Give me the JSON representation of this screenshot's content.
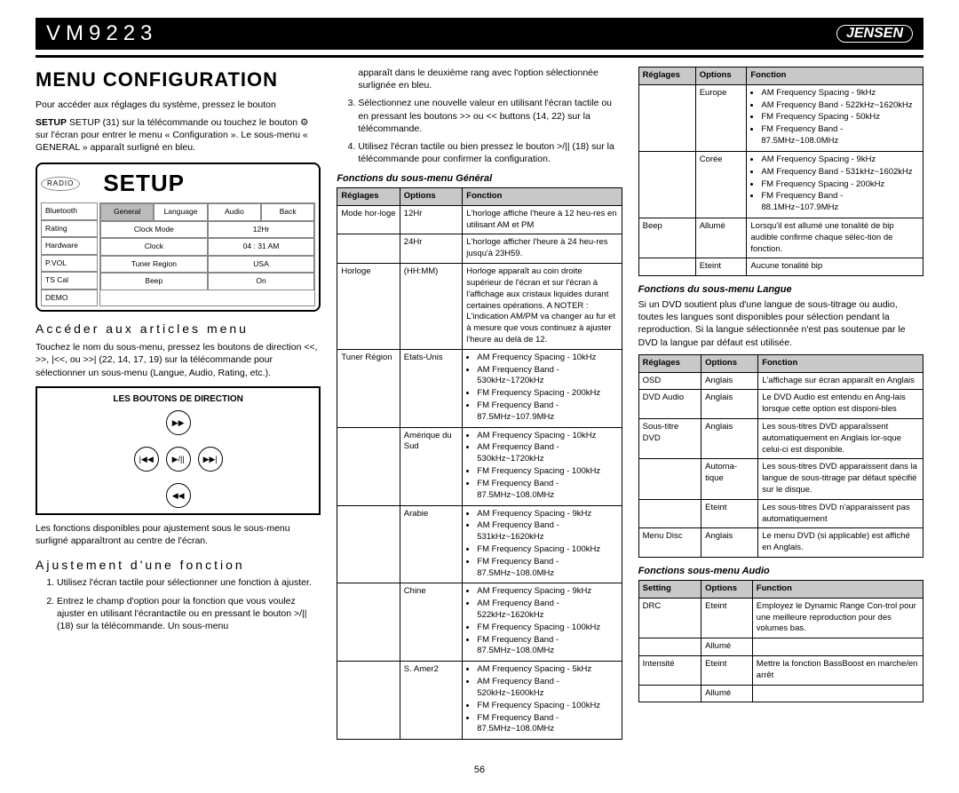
{
  "header": {
    "model": "VM9223",
    "brand": "JENSEN"
  },
  "title": "MENU CONFIGURATION",
  "page_number": "56",
  "col1": {
    "intro": "Pour accéder aux réglages du système, pressez le bouton",
    "setup_para": "SETUP (31) sur la télécommande ou touchez le bouton ⚙ sur l'écran pour entrer le menu « Configuration ». Le sous-menu « GENERAL » apparaît surligné en bleu.",
    "setup_panel": {
      "radio": "RADIO",
      "title": "SETUP",
      "side": [
        "Bluetooth",
        "Rating",
        "Hardware",
        "P.VOL",
        "TS Cal",
        "DEMO"
      ],
      "tabs": [
        "General",
        "Language",
        "Audio",
        "Back"
      ],
      "rows": [
        [
          "Clock Mode",
          "12Hr"
        ],
        [
          "Clock",
          "04 : 31  AM"
        ],
        [
          "Tuner Region",
          "USA"
        ],
        [
          "Beep",
          "On"
        ]
      ]
    },
    "h_access": "Accéder aux articles menu",
    "p_access": "Touchez le nom du sous-menu, pressez les boutons de direction <<, >>, |<<, ou >>| (22, 14, 17, 19) sur la télécommande pour sélectionner un sous-menu (Langue, Audio, Rating, etc.).",
    "dir_title": "LES BOUTONS DE DIRECTION",
    "dir_btns": {
      "u": "▶▶",
      "d": "◀◀",
      "l": "|◀◀",
      "c": "▶/||",
      "r": "▶▶|"
    },
    "p_funcs": "Les fonctions disponibles pour ajustement sous le sous-menu surligné apparaîtront au centre de l'écran.",
    "h_adjust": "Ajustement d'une fonction",
    "ol": [
      "Utilisez l'écran tactile pour sélectionner une fonction à ajuster.",
      "Entrez le champ d'option pour la fonction que vous voulez ajuster en utilisant l'écrantactile ou en pressant le bouton >/|| (18) sur la télécommande. Un sous-menu"
    ]
  },
  "col2": {
    "cont": "apparaît dans le deuxième rang avec l'option sélectionnée surlignée en bleu.",
    "ol": [
      "Sélectionnez une nouvelle valeur en utilisant l'écran tactile ou en pressant les boutons >> ou << buttons (14, 22) sur la télécommande.",
      "Utilisez l'écran tactile ou bien pressez le bouton >/|| (18) sur la télécommande pour confirmer la configuration."
    ],
    "sub_heading": "Fonctions du sous-menu Général",
    "th": [
      "Réglages",
      "Options",
      "Fonction"
    ],
    "rows": [
      {
        "r": "Mode hor-loge",
        "o": "12Hr",
        "f": "L'horloge affiche l'heure à 12 heu-res en utilisant AM et PM"
      },
      {
        "r": "",
        "o": "24Hr",
        "f": "L'horloge afficher l'heure à 24 heu-res jusqu'à 23H59."
      },
      {
        "r": "Horloge",
        "o": "(HH:MM)",
        "f": "Horloge apparaît au coin droite supérieur de l'écran et sur l'écran à l'affichage aux cristaux liquides durant certaines opérations. A NOTER : L'indication AM/PM va changer au fur et à mesure que vous continuez à ajuster l'heure au delà de 12."
      },
      {
        "r": "Tuner Région",
        "o": "Etats-Unis",
        "f": [
          "AM Frequency Spacing - 10kHz",
          "AM Frequency Band - 530kHz~1720kHz",
          "FM Frequency Spacing - 200kHz",
          "FM Frequency Band - 87.5MHz~107.9MHz"
        ]
      },
      {
        "r": "",
        "o": "Amérique du Sud",
        "f": [
          "AM Frequency Spacing - 10kHz",
          "AM Frequency Band - 530kHz~1720kHz",
          "FM Frequency Spacing - 100kHz",
          "FM Frequency Band - 87.5MHz~108.0MHz"
        ]
      },
      {
        "r": "",
        "o": "Arabie",
        "f": [
          "AM Frequency Spacing - 9kHz",
          "AM Frequency Band - 531kHz~1620kHz",
          "FM Frequency Spacing - 100kHz",
          "FM Frequency Band - 87.5MHz~108.0MHz"
        ]
      },
      {
        "r": "",
        "o": "Chine",
        "f": [
          "AM Frequency Spacing - 9kHz",
          "AM Frequency Band - 522kHz~1620kHz",
          "FM Frequency Spacing - 100kHz",
          "FM Frequency Band - 87.5MHz~108.0MHz"
        ]
      },
      {
        "r": "",
        "o": "S. Amer2",
        "f": [
          "AM Frequency Spacing - 5kHz",
          "AM Frequency Band - 520kHz~1600kHz",
          "FM Frequency Spacing - 100kHz",
          "FM Frequency Band - 87.5MHz~108.0MHz"
        ]
      }
    ]
  },
  "col3": {
    "th1": [
      "Réglages",
      "Options",
      "Fonction"
    ],
    "rows1": [
      {
        "r": "",
        "o": "Europe",
        "f": [
          "AM Frequency Spacing - 9kHz",
          "AM Frequency Band - 522kHz~1620kHz",
          "FM Frequency Spacing - 50kHz",
          "FM Frequency Band - 87.5MHz~108.0MHz"
        ]
      },
      {
        "r": "",
        "o": "Corée",
        "f": [
          "AM Frequency Spacing - 9kHz",
          "AM Frequency Band - 531kHz~1602kHz",
          "FM Frequency Spacing - 200kHz",
          "FM Frequency Band - 88.1MHz~107.9MHz"
        ]
      },
      {
        "r": "Beep",
        "o": "Allumé",
        "f": "Lorsqu'il est allumé une tonalité de bip audible confirme chaque sélec-tion de fonction."
      },
      {
        "r": "",
        "o": "Eteint",
        "f": "Aucune tonalité bip"
      }
    ],
    "sub_lang": "Fonctions du sous-menu Langue",
    "p_lang": "Si un DVD soutient plus d'une langue de sous-titrage ou audio, toutes les langues sont disponibles pour sélection pendant la reproduction. Si la langue sélectionnée n'est pas soutenue par le DVD la langue par défaut est utilisée.",
    "th2": [
      "Réglages",
      "Options",
      "Fonction"
    ],
    "rows2": [
      {
        "r": "OSD",
        "o": "Anglais",
        "f": "L'affichage sur écran apparaît en Anglais"
      },
      {
        "r": "DVD Audio",
        "o": "Anglais",
        "f": "Le DVD Audio est entendu en Ang-lais lorsque cette option est disponi-bles"
      },
      {
        "r": "Sous-titre DVD",
        "o": "Anglais",
        "f": "Les sous-titres DVD apparaîssent automatiquement en Anglais lor-sque celui-ci est disponible."
      },
      {
        "r": "",
        "o": "Automa-tique",
        "f": "Les sous-titres DVD apparaissent dans la langue de sous-titrage par défaut spécifié sur le disque."
      },
      {
        "r": "",
        "o": "Eteint",
        "f": "Les sous-titres DVD n'apparaissent pas automatiquement"
      },
      {
        "r": "Menu Disc",
        "o": "Anglais",
        "f": "Le menu DVD (si applicable) est affiché en Anglais."
      }
    ],
    "sub_audio": "Fonctions sous-menu Audio",
    "th3": [
      "Setting",
      "Options",
      "Function"
    ],
    "rows3": [
      {
        "r": "DRC",
        "o": "Eteint",
        "f": "Employez le Dynamic Range Con-trol pour une meilleure reproduction pour des volumes bas."
      },
      {
        "r": "",
        "o": "Allumé",
        "f": ""
      },
      {
        "r": "Intensité",
        "o": "Eteint",
        "f": "Mettre la fonction BassBoost en marche/en arrêt"
      },
      {
        "r": "",
        "o": "Allumé",
        "f": ""
      }
    ]
  }
}
